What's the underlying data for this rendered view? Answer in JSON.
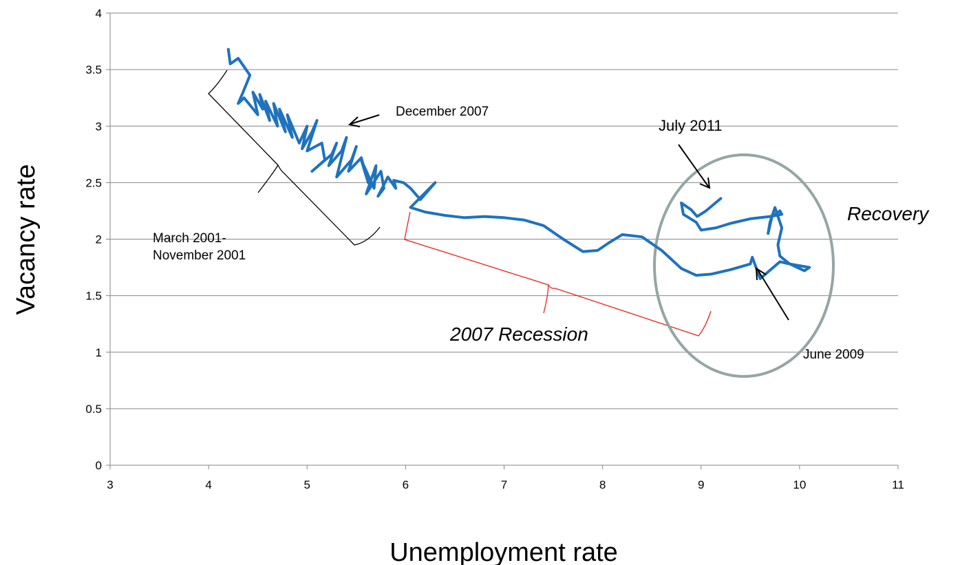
{
  "chart_data": {
    "type": "line",
    "title": "",
    "xlabel": "Unemployment rate",
    "ylabel": "Vacancy rate",
    "xlim": [
      3,
      11
    ],
    "ylim": [
      0,
      4
    ],
    "xticks": [
      "3",
      "4",
      "5",
      "6",
      "7",
      "8",
      "9",
      "10",
      "11"
    ],
    "yticks": [
      "0",
      "0.5",
      "1",
      "1.5",
      "2",
      "2.5",
      "3",
      "3.5",
      "4"
    ],
    "grid": "horizontal",
    "series_color": "#1f72be",
    "series": [
      {
        "x": [
          4.2,
          4.22,
          4.3,
          4.42,
          4.35,
          4.3,
          4.36,
          4.5,
          4.45,
          4.55,
          4.52,
          4.62,
          4.58,
          4.7,
          4.66,
          4.78,
          4.72,
          4.85,
          4.8,
          4.92,
          5.0,
          4.95,
          5.05,
          5.1,
          5.0,
          5.15,
          5.18,
          5.05,
          5.25,
          5.3,
          5.22,
          5.35,
          5.4,
          5.3,
          5.45,
          5.5,
          5.42,
          5.55,
          5.62,
          5.55,
          5.68,
          5.7,
          5.6,
          5.75,
          5.78,
          5.72,
          5.82,
          5.9,
          5.88,
          5.98,
          6.05,
          6.15,
          6.3,
          6.05,
          6.2,
          6.4,
          6.6,
          6.8,
          7.0,
          7.2,
          7.4,
          7.6,
          7.8,
          7.95,
          8.05,
          8.2,
          8.4,
          8.6,
          8.8,
          8.95,
          9.1,
          9.3,
          9.5,
          9.52,
          9.6,
          9.8,
          9.9,
          10.1,
          10.05,
          9.9,
          9.8,
          9.78,
          9.82,
          9.75,
          9.7,
          9.68,
          9.72,
          9.8,
          9.82,
          9.7,
          9.5,
          9.3,
          9.15,
          9.0,
          8.95,
          8.82,
          8.8,
          8.9,
          8.96,
          9.05,
          9.2
        ],
        "y": [
          3.68,
          3.55,
          3.6,
          3.45,
          3.3,
          3.2,
          3.25,
          3.1,
          3.3,
          3.15,
          3.28,
          3.05,
          3.22,
          3.0,
          3.2,
          2.95,
          3.15,
          2.9,
          3.1,
          2.85,
          3.0,
          2.8,
          2.95,
          3.05,
          2.78,
          2.85,
          2.7,
          2.6,
          2.75,
          2.85,
          2.65,
          2.78,
          2.9,
          2.55,
          2.7,
          2.82,
          2.6,
          2.72,
          2.5,
          2.7,
          2.45,
          2.65,
          2.4,
          2.6,
          2.45,
          2.38,
          2.55,
          2.45,
          2.52,
          2.5,
          2.45,
          2.35,
          2.5,
          2.28,
          2.24,
          2.21,
          2.19,
          2.2,
          2.19,
          2.17,
          2.12,
          2.0,
          1.89,
          1.9,
          1.96,
          2.04,
          2.02,
          1.9,
          1.74,
          1.68,
          1.69,
          1.73,
          1.78,
          1.84,
          1.65,
          1.8,
          1.78,
          1.75,
          1.72,
          1.78,
          1.85,
          1.95,
          2.1,
          2.28,
          2.15,
          2.05,
          2.2,
          2.25,
          2.22,
          2.2,
          2.18,
          2.14,
          2.1,
          2.08,
          2.15,
          2.22,
          2.32,
          2.26,
          2.2,
          2.25,
          2.36
        ]
      }
    ],
    "annotations": {
      "december_2007": "December 2007",
      "july_2011": "July 2011",
      "recovery": "Recovery",
      "march_2001": "March 2001-",
      "november_2001": "November 2001",
      "recession_2007": "2007 Recession",
      "june_2009": "June 2009"
    }
  }
}
